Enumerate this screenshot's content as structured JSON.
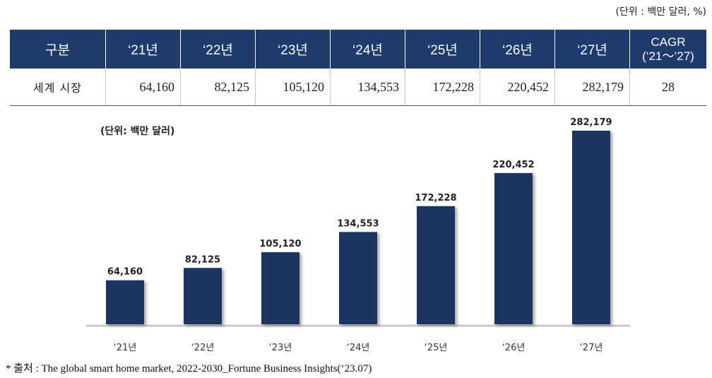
{
  "unit_label": "(단위 : 백만 달러, %)",
  "table": {
    "headers": [
      "구분",
      "‘21년",
      "‘22년",
      "‘23년",
      "‘24년",
      "‘25년",
      "‘26년",
      "‘27년"
    ],
    "cagr_header_line1": "CAGR",
    "cagr_header_line2": "(‘21～’27)",
    "row_label": "세계 시장",
    "values": [
      "64,160",
      "82,125",
      "105,120",
      "134,553",
      "172,228",
      "220,452",
      "282,179"
    ],
    "cagr": "28"
  },
  "chart_data": {
    "type": "bar",
    "title": "(단위: 백만 달러)",
    "categories": [
      "‘21년",
      "‘22년",
      "‘23년",
      "‘24년",
      "‘25년",
      "‘26년",
      "‘27년"
    ],
    "values": [
      64160,
      82125,
      105120,
      134553,
      172228,
      220452,
      282179
    ],
    "data_labels": [
      "64,160",
      "82,125",
      "105,120",
      "134,553",
      "172,228",
      "220,452",
      "282,179"
    ],
    "ylim": [
      0,
      282179
    ],
    "grid": false,
    "bar_color": "#1b3560"
  },
  "source": "* 출처 : The global smart home market, 2022-2030_Fortune Business Insights(‘23.07)",
  "colors": {
    "header_bg": "#1f3b6e",
    "bar": "#1b3560"
  }
}
